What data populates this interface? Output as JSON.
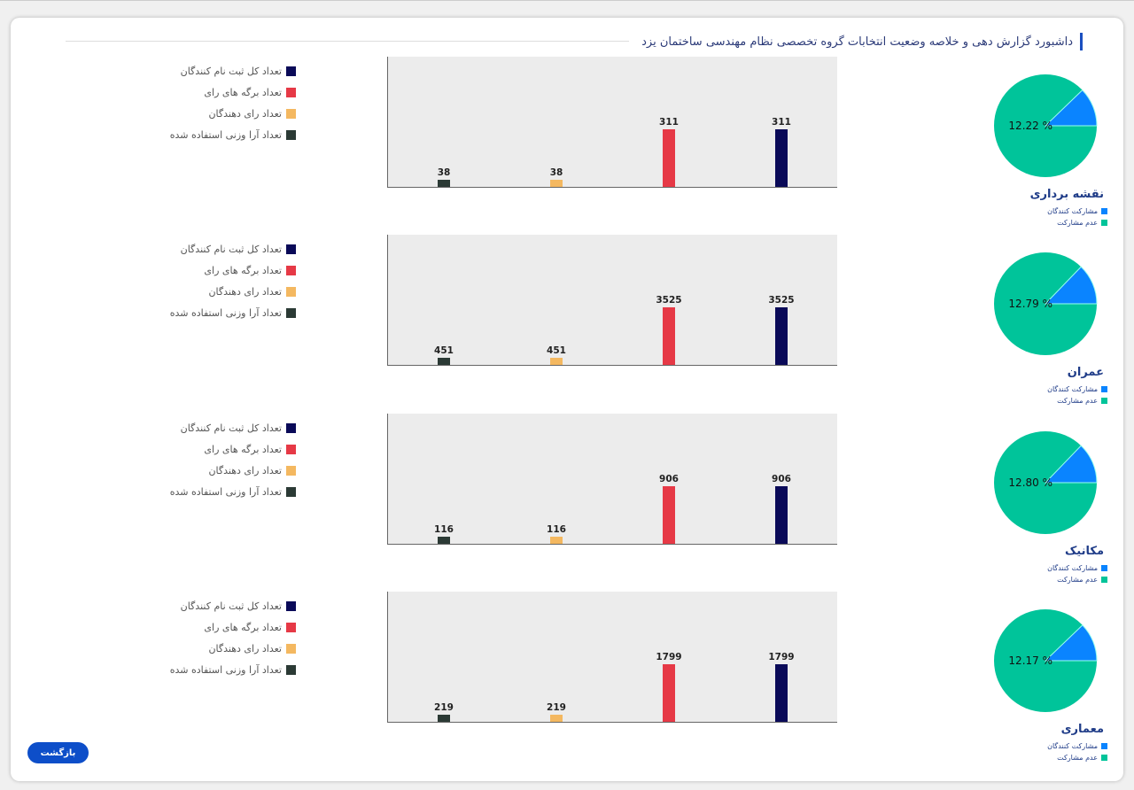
{
  "header": {
    "title": "داشبورد گزارش دهی و خلاصه وضعیت انتخابات گروه تخصصی نظام مهندسی ساختمان یزد"
  },
  "legend": [
    {
      "label": "تعداد کل ثبت نام کنندگان",
      "color": "#0a0a58"
    },
    {
      "label": "تعداد برگه های رای",
      "color": "#e63946"
    },
    {
      "label": "تعداد رای دهندگان",
      "color": "#f4b860"
    },
    {
      "label": "تعداد آرا وزنی استفاده شده",
      "color": "#2b3a35"
    }
  ],
  "pie_legend": [
    {
      "label": "مشارکت کنندگان",
      "color": "#0a84ff"
    },
    {
      "label": "عدم مشارکت",
      "color": "#00c49a"
    }
  ],
  "back_label": "بازگشت",
  "chart_data": [
    {
      "type": "bar",
      "group": "نقشه برداری",
      "categories": [
        "تعداد آرا وزنی استفاده شده",
        "تعداد رای دهندگان",
        "تعداد برگه های رای",
        "تعداد کل ثبت نام کنندگان"
      ],
      "values": [
        38,
        38,
        311,
        311
      ],
      "colors": [
        "#2b3a35",
        "#f4b860",
        "#e63946",
        "#0a0a58"
      ],
      "pie": {
        "type": "pie",
        "participation_pct": 12.22,
        "label": "12.22 %"
      }
    },
    {
      "type": "bar",
      "group": "عمران",
      "categories": [
        "تعداد آرا وزنی استفاده شده",
        "تعداد رای دهندگان",
        "تعداد برگه های رای",
        "تعداد کل ثبت نام کنندگان"
      ],
      "values": [
        451,
        451,
        3525,
        3525
      ],
      "colors": [
        "#2b3a35",
        "#f4b860",
        "#e63946",
        "#0a0a58"
      ],
      "pie": {
        "type": "pie",
        "participation_pct": 12.79,
        "label": "12.79 %"
      }
    },
    {
      "type": "bar",
      "group": "مکانیک",
      "categories": [
        "تعداد آرا وزنی استفاده شده",
        "تعداد رای دهندگان",
        "تعداد برگه های رای",
        "تعداد کل ثبت نام کنندگان"
      ],
      "values": [
        116,
        116,
        906,
        906
      ],
      "colors": [
        "#2b3a35",
        "#f4b860",
        "#e63946",
        "#0a0a58"
      ],
      "pie": {
        "type": "pie",
        "participation_pct": 12.8,
        "label": "12.80 %"
      }
    },
    {
      "type": "bar",
      "group": "معماری",
      "categories": [
        "تعداد آرا وزنی استفاده شده",
        "تعداد رای دهندگان",
        "تعداد برگه های رای",
        "تعداد کل ثبت نام کنندگان"
      ],
      "values": [
        219,
        219,
        1799,
        1799
      ],
      "colors": [
        "#2b3a35",
        "#f4b860",
        "#e63946",
        "#0a0a58"
      ],
      "pie": {
        "type": "pie",
        "participation_pct": 12.17,
        "label": "12.17 %"
      }
    }
  ]
}
